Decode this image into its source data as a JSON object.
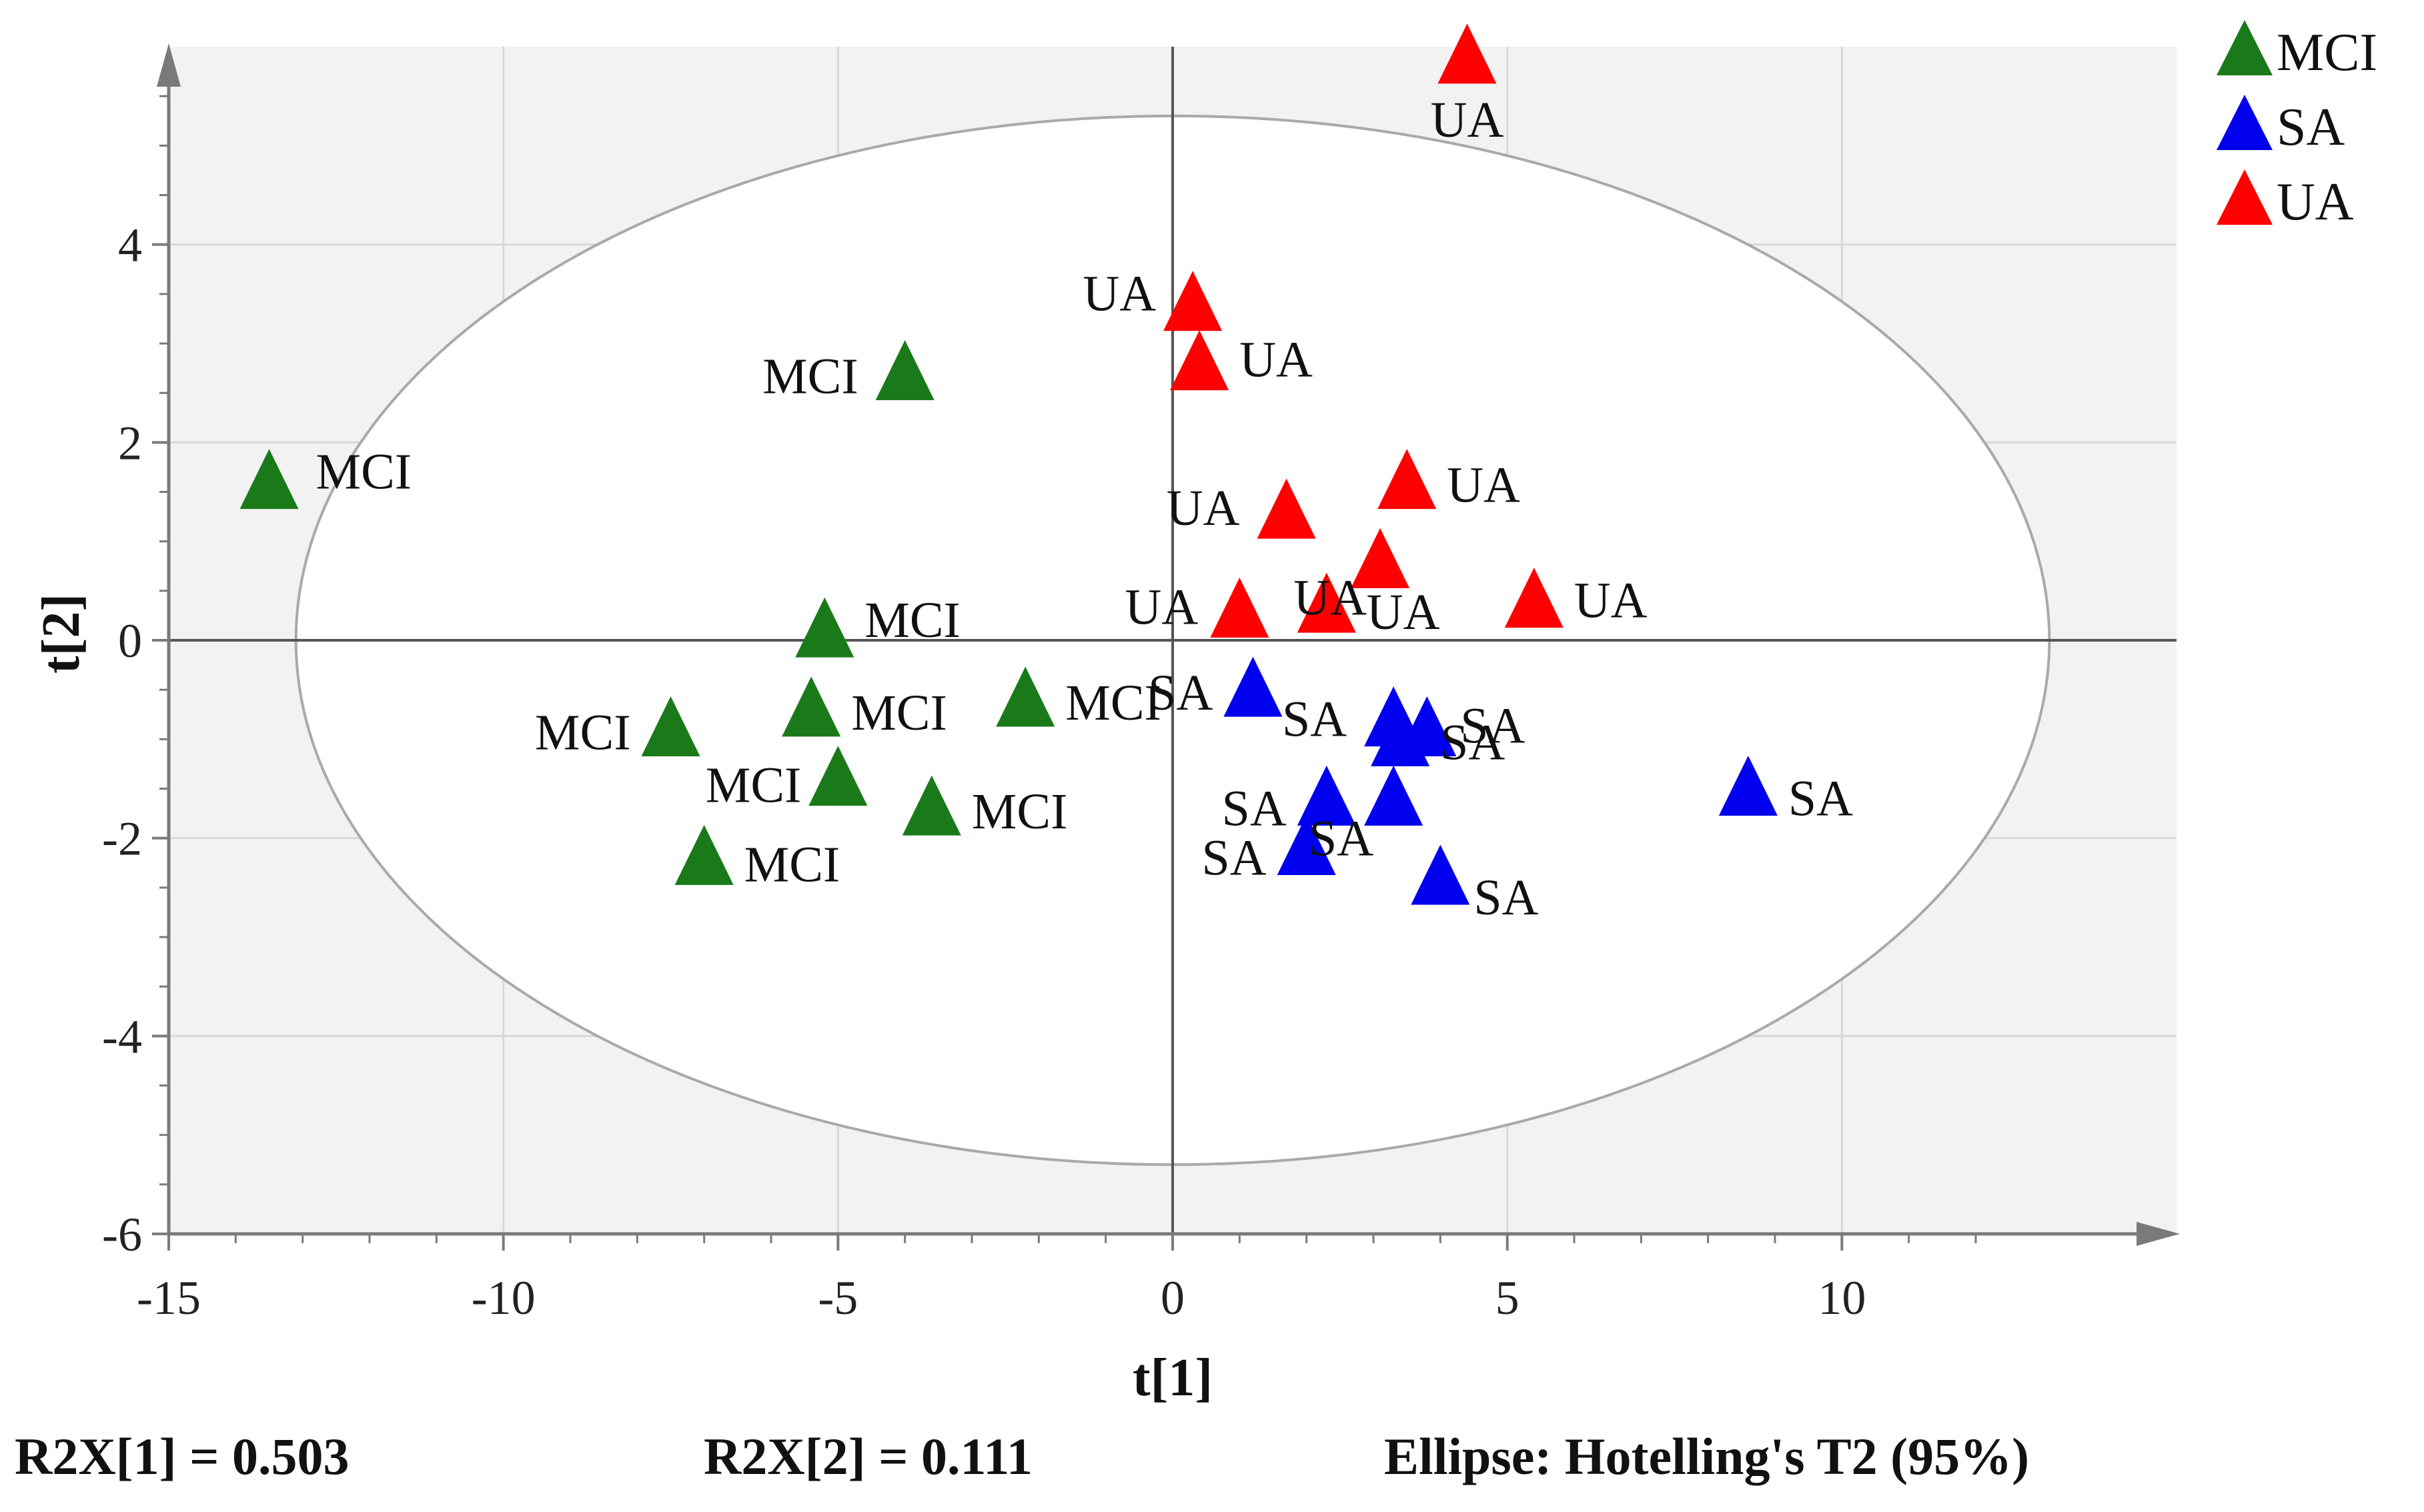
{
  "chart_data": {
    "type": "scatter",
    "title": "",
    "xlabel": "t[1]",
    "ylabel": "t[2]",
    "xlim": [
      -15,
      15
    ],
    "ylim": [
      -6,
      6
    ],
    "x_ticks": [
      -15,
      -10,
      -5,
      0,
      5,
      10
    ],
    "y_ticks": [
      -6,
      -4,
      -2,
      0,
      2,
      4
    ],
    "x_tick_labels": [
      "-15",
      "-10",
      "-5",
      "0",
      "5",
      "10"
    ],
    "y_tick_labels": [
      "-6",
      "-4",
      "-2",
      "0",
      "2",
      "4"
    ],
    "grid": true,
    "legend_position": "top-right",
    "ellipse": {
      "label": "Hotelling's T2 (95%)",
      "center": [
        0,
        0
      ],
      "semi_axis_x": 13.1,
      "semi_axis_y": 5.3
    },
    "colors": {
      "MCI": "#1a7a1a",
      "SA": "#0000ee",
      "UA": "#ff0000"
    },
    "series": [
      {
        "name": "MCI",
        "color": "#1a7a1a",
        "points": [
          {
            "x": -13.5,
            "y": 1.6,
            "label": "MCI"
          },
          {
            "x": -4.0,
            "y": 2.7,
            "label": "MCI"
          },
          {
            "x": -5.2,
            "y": 0.1,
            "label": "MCI"
          },
          {
            "x": -5.4,
            "y": -0.7,
            "label": "MCI"
          },
          {
            "x": -7.5,
            "y": -0.9,
            "label": "MCI"
          },
          {
            "x": -2.2,
            "y": -0.6,
            "label": "MCI"
          },
          {
            "x": -5.0,
            "y": -1.4,
            "label": "MCI"
          },
          {
            "x": -3.6,
            "y": -1.7,
            "label": "MCI"
          },
          {
            "x": -7.0,
            "y": -2.2,
            "label": "MCI"
          }
        ]
      },
      {
        "name": "SA",
        "color": "#0000ee",
        "points": [
          {
            "x": 1.2,
            "y": -0.5,
            "label": "SA"
          },
          {
            "x": 3.3,
            "y": -0.8,
            "label": "SA"
          },
          {
            "x": 3.4,
            "y": -1.0,
            "label": "SA"
          },
          {
            "x": 3.8,
            "y": -0.9,
            "label": "SA"
          },
          {
            "x": 2.3,
            "y": -1.6,
            "label": "SA"
          },
          {
            "x": 3.3,
            "y": -1.6,
            "label": "SA"
          },
          {
            "x": 2.0,
            "y": -2.1,
            "label": "SA"
          },
          {
            "x": 4.0,
            "y": -2.4,
            "label": "SA"
          },
          {
            "x": 8.6,
            "y": -1.5,
            "label": "SA"
          }
        ]
      },
      {
        "name": "UA",
        "color": "#ff0000",
        "points": [
          {
            "x": 4.4,
            "y": 5.9,
            "label": "UA"
          },
          {
            "x": 0.3,
            "y": 3.4,
            "label": "UA"
          },
          {
            "x": 0.4,
            "y": 2.8,
            "label": "UA"
          },
          {
            "x": 3.5,
            "y": 1.6,
            "label": "UA"
          },
          {
            "x": 1.7,
            "y": 1.3,
            "label": "UA"
          },
          {
            "x": 3.1,
            "y": 0.8,
            "label": "UA"
          },
          {
            "x": 1.0,
            "y": 0.3,
            "label": "UA"
          },
          {
            "x": 2.3,
            "y": 0.35,
            "label": "UA"
          },
          {
            "x": 5.4,
            "y": 0.4,
            "label": "UA"
          }
        ]
      }
    ],
    "legend": [
      "MCI",
      "SA",
      "UA"
    ],
    "footer": {
      "r2x1": "R2X[1] = 0.503",
      "r2x2": "R2X[2] = 0.111",
      "ellipse_note": "Ellipse: Hotelling's T2 (95%)"
    }
  }
}
